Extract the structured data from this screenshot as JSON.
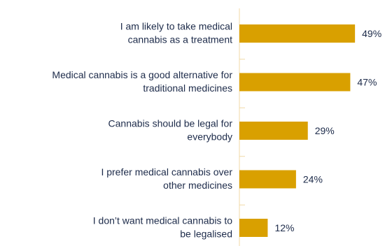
{
  "chart_data": {
    "type": "bar",
    "orientation": "horizontal",
    "categories": [
      [
        "I am likely to take medical",
        "cannabis as a treatment"
      ],
      [
        "Medical cannabis is a good alternative for",
        "traditional medicines"
      ],
      [
        "Cannabis should be legal for",
        "everybody"
      ],
      [
        "I prefer medical cannabis over",
        "other medicines"
      ],
      [
        "I don’t want medical cannabis to",
        "be legalised"
      ]
    ],
    "values": [
      49,
      47,
      29,
      24,
      12
    ],
    "value_labels": [
      "49%",
      "47%",
      "29%",
      "24%",
      "12%"
    ],
    "xlim": [
      0,
      50
    ],
    "bar_color": "#d9a000",
    "axis_color": "#f0d9a6",
    "text_color": "#1d2b4a",
    "grid": false
  }
}
